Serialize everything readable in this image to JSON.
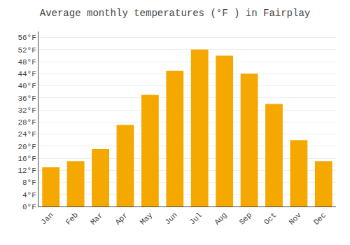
{
  "chart_data": {
    "type": "bar",
    "title": "Average monthly temperatures (°F ) in Fairplay",
    "categories": [
      "Jan",
      "Feb",
      "Mar",
      "Apr",
      "May",
      "Jun",
      "Jul",
      "Aug",
      "Sep",
      "Oct",
      "Nov",
      "Dec"
    ],
    "values": [
      13,
      15,
      19,
      27,
      37,
      45,
      52,
      50,
      44,
      34,
      22,
      15
    ],
    "color": "#F5A800",
    "ylim": [
      0,
      58
    ],
    "yticks": [
      {
        "value": 0,
        "label": "0°F"
      },
      {
        "value": 4,
        "label": "4°F"
      },
      {
        "value": 8,
        "label": "8°F"
      },
      {
        "value": 12,
        "label": "12°F"
      },
      {
        "value": 16,
        "label": "16°F"
      },
      {
        "value": 20,
        "label": "20°F"
      },
      {
        "value": 24,
        "label": "24°F"
      },
      {
        "value": 28,
        "label": "28°F"
      },
      {
        "value": 32,
        "label": "32°F"
      },
      {
        "value": 36,
        "label": "36°F"
      },
      {
        "value": 40,
        "label": "40°F"
      },
      {
        "value": 44,
        "label": "44°F"
      },
      {
        "value": 48,
        "label": "48°F"
      },
      {
        "value": 52,
        "label": "52°F"
      },
      {
        "value": 56,
        "label": "56°F"
      }
    ],
    "grid": true
  }
}
